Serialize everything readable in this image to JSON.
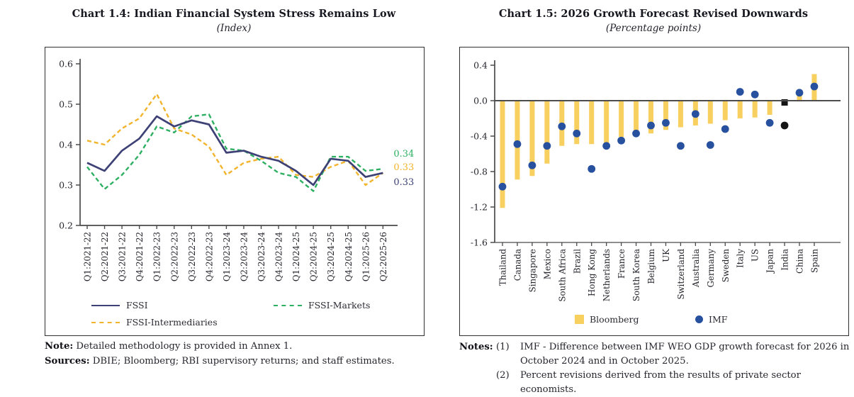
{
  "chart_left": {
    "title": "Chart 1.4: Indian Financial System Stress Remains Low",
    "subtitle": "(Index)",
    "note_label": "Note:",
    "note_text": "Detailed methodology is provided in Annex 1.",
    "sources_label": "Sources:",
    "sources_text": "DBIE; Bloomberg; RBI supervisory returns; and staff estimates."
  },
  "chart_right": {
    "title": "Chart 1.5: 2026 Growth Forecast Revised Downwards",
    "subtitle": "(Percentage points)",
    "notes_label": "Notes:",
    "note1_number": "(1)",
    "note1_line1": "IMF - Difference between IMF WEO GDP growth forecast for 2026 in",
    "note1_line2": "October 2024 and in October 2025.",
    "note2_number": "(2)",
    "note2_text": "Percent revisions derived from the results of private sector economists."
  },
  "colors": {
    "fssi": "#3d4175",
    "fssi_markets": "#2eb062",
    "fssi_intermediaries": "#f2b42c",
    "bloomberg_bar": "#f8d05f",
    "imf_dot": "#27509e",
    "india_highlight": "#151515",
    "axis": "#4a4a4a"
  },
  "chart_data": [
    {
      "type": "line",
      "title": "Chart 1.4: Indian Financial System Stress Remains Low",
      "subtitle": "(Index)",
      "ylim": [
        0.2,
        0.6
      ],
      "yticks": [
        0.6,
        0.5,
        0.4,
        0.3,
        0.2
      ],
      "grid": false,
      "legend_position": "bottom",
      "categories": [
        "Q1:2021-22",
        "Q2:2021-22",
        "Q3:2021-22",
        "Q4:2021-22",
        "Q1:2022-23",
        "Q2:2022-23",
        "Q3:2022-23",
        "Q4:2022-23",
        "Q1:2023-24",
        "Q2:2023-24",
        "Q3:2023-24",
        "Q4:2023-24",
        "Q1:2024-25",
        "Q2:2024-25",
        "Q3:2024-25",
        "Q4:2024-25",
        "Q1:2025-26",
        "Q2:2025-26"
      ],
      "series": [
        {
          "name": "FSSI",
          "style": "solid",
          "color": "#3d4175",
          "end_label": "0.33",
          "values": [
            0.355,
            0.335,
            0.385,
            0.415,
            0.47,
            0.445,
            0.46,
            0.45,
            0.38,
            0.385,
            0.37,
            0.36,
            0.335,
            0.3,
            0.365,
            0.36,
            0.32,
            0.33
          ]
        },
        {
          "name": "FSSI-Markets",
          "style": "dashed",
          "color": "#2eb062",
          "end_label": "0.34",
          "values": [
            0.345,
            0.29,
            0.325,
            0.375,
            0.445,
            0.43,
            0.47,
            0.475,
            0.39,
            0.385,
            0.36,
            0.33,
            0.32,
            0.285,
            0.37,
            0.37,
            0.335,
            0.34
          ]
        },
        {
          "name": "FSSI-Intermediaries",
          "style": "dashed",
          "color": "#f2b42c",
          "end_label": "0.33",
          "values": [
            0.41,
            0.4,
            0.44,
            0.465,
            0.525,
            0.44,
            0.425,
            0.395,
            0.325,
            0.355,
            0.365,
            0.37,
            0.325,
            0.32,
            0.345,
            0.36,
            0.3,
            0.33
          ]
        }
      ]
    },
    {
      "type": "bar",
      "title": "Chart 1.5: 2026 Growth Forecast Revised Downwards",
      "subtitle": "(Percentage points)",
      "ylim": [
        -1.6,
        0.4
      ],
      "yticks": [
        0.4,
        0.0,
        -0.4,
        -0.8,
        -1.2,
        -1.6
      ],
      "grid": false,
      "legend_position": "bottom",
      "highlight_category": "India",
      "highlight_color": "#151515",
      "categories": [
        "Thailand",
        "Canada",
        "Singapore",
        "Mexico",
        "South Africa",
        "Brazil",
        "Hong Kong",
        "Netherlands",
        "France",
        "South Korea",
        "Belgium",
        "UK",
        "Switzerland",
        "Australia",
        "Germany",
        "Sweden",
        "Italy",
        "US",
        "Japan",
        "India",
        "China",
        "Spain"
      ],
      "series": [
        {
          "name": "Bloomberg",
          "kind": "bar",
          "color": "#f8d05f",
          "values": [
            -1.21,
            -0.89,
            -0.85,
            -0.71,
            -0.51,
            -0.49,
            -0.49,
            -0.52,
            -0.41,
            -0.4,
            -0.37,
            -0.33,
            -0.3,
            -0.28,
            -0.26,
            -0.22,
            -0.2,
            -0.19,
            -0.16,
            -0.04,
            0.06,
            0.3
          ]
        },
        {
          "name": "IMF",
          "kind": "scatter",
          "color": "#27509e",
          "values": [
            -0.97,
            -0.49,
            -0.73,
            -0.51,
            -0.29,
            -0.37,
            -0.77,
            -0.51,
            -0.45,
            -0.37,
            -0.28,
            -0.25,
            -0.51,
            -0.15,
            -0.5,
            -0.32,
            0.1,
            0.07,
            -0.25,
            -0.28,
            0.09,
            0.16
          ]
        }
      ]
    }
  ]
}
